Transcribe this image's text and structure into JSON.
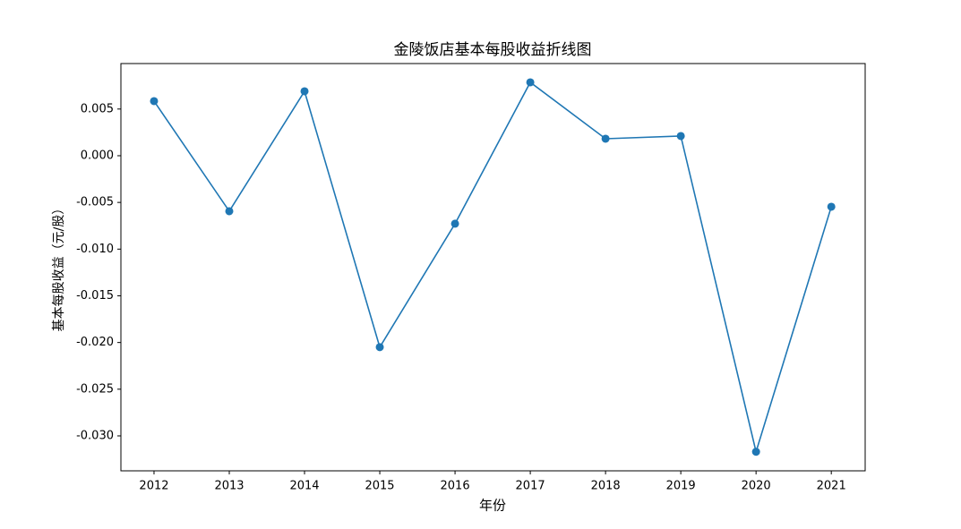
{
  "chart_data": {
    "type": "line",
    "title": "金陵饭店基本每股收益折线图",
    "x_label": "年份",
    "y_label": "基本每股收益（元/股）",
    "x": [
      2012,
      2013,
      2014,
      2015,
      2016,
      2017,
      2018,
      2019,
      2020,
      2021
    ],
    "series": [
      {
        "name": "基本每股收益",
        "color": "#1f77b4",
        "values": [
          0.00585,
          -0.00594,
          0.0069,
          -0.0205,
          -0.00728,
          0.00786,
          0.00182,
          0.00211,
          -0.0317,
          -0.00546
        ]
      }
    ],
    "xlim": [
      2011.56,
      2021.45
    ],
    "xticks": [
      2012,
      2013,
      2014,
      2015,
      2016,
      2017,
      2018,
      2019,
      2020,
      2021
    ],
    "ylim": [
      -0.03374,
      0.00987
    ],
    "yticks": [
      {
        "value": -0.03,
        "label": "-0.030"
      },
      -0.025,
      {
        "value": -0.02,
        "label": "-0.020"
      },
      -0.015,
      {
        "value": -0.01,
        "label": "-0.010"
      },
      -0.005,
      {
        "value": 0,
        "label": "0.000"
      },
      0.005
    ],
    "grid": false
  }
}
